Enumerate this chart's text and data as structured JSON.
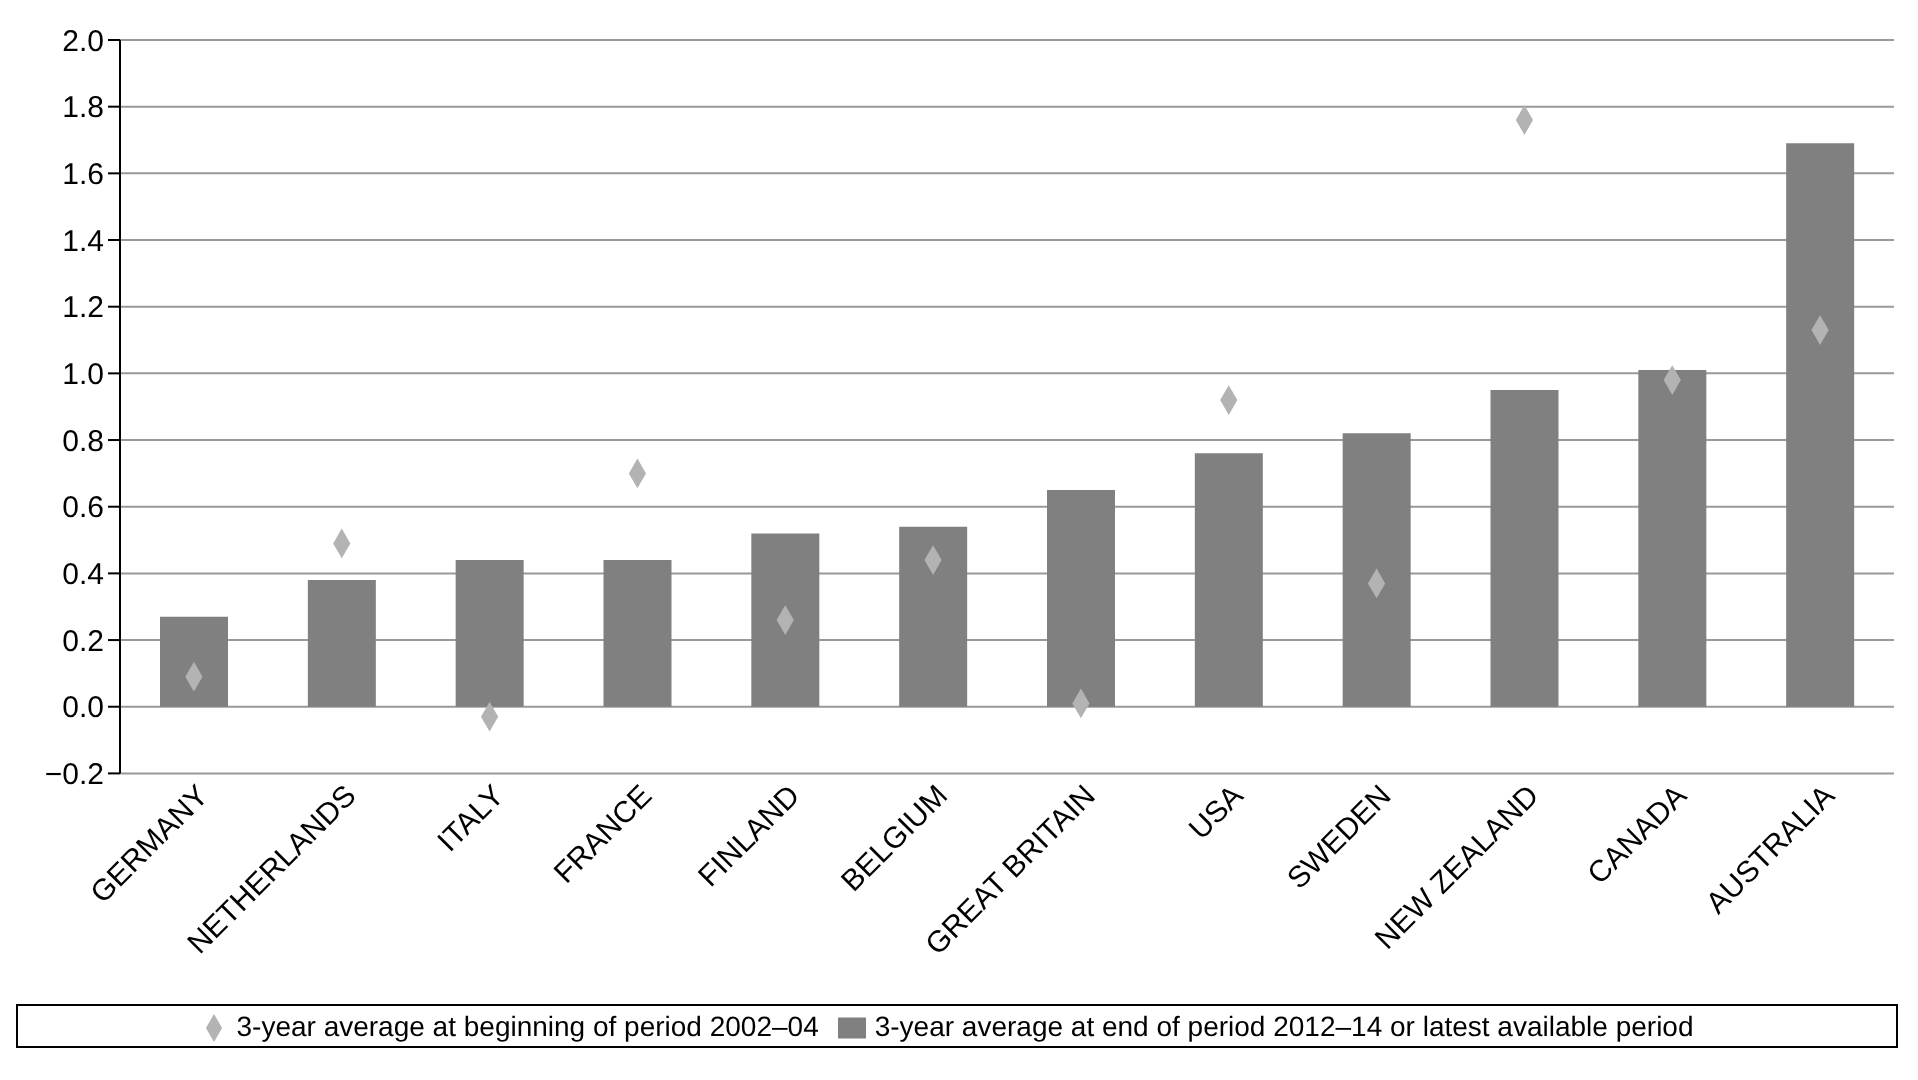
{
  "chart_data": {
    "type": "bar",
    "categories": [
      "GERMANY",
      "NETHERLANDS",
      "ITALY",
      "FRANCE",
      "FINLAND",
      "BELGIUM",
      "GREAT BRITAIN",
      "USA",
      "SWEDEN",
      "NEW ZEALAND",
      "CANADA",
      "AUSTRALIA"
    ],
    "series": [
      {
        "name": "3-year average at end of period 2012–14 or latest available period",
        "color": "#808080",
        "values": [
          0.27,
          0.38,
          0.44,
          0.44,
          0.52,
          0.54,
          0.65,
          0.76,
          0.82,
          0.95,
          1.01,
          1.69
        ]
      },
      {
        "name": "3-year average at beginning of period 2002–04",
        "type": "scatter",
        "color": "#b3b3b3",
        "values": [
          0.09,
          0.49,
          -0.03,
          0.7,
          0.26,
          0.44,
          0.01,
          0.92,
          0.37,
          1.76,
          0.98,
          1.13
        ]
      }
    ],
    "ylim": [
      -0.2,
      2.0
    ],
    "yticks": [
      -0.2,
      {
        "value": 0,
        "label": "0.0"
      },
      0.2,
      0.4,
      0.6,
      0.8,
      {
        "value": 1,
        "label": "1.0"
      },
      1.2,
      1.4,
      1.6,
      1.8,
      {
        "value": 2,
        "label": "2.0"
      }
    ],
    "grid": "y",
    "legend": "bottom",
    "marker": "diamond"
  }
}
